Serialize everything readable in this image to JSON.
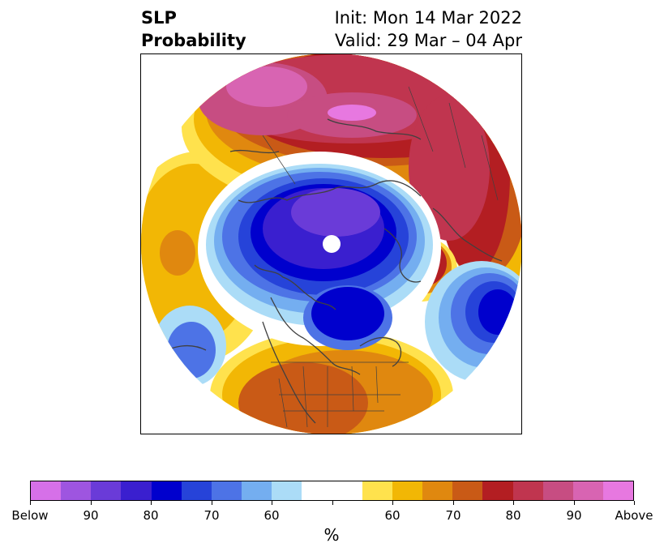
{
  "header": {
    "title_line1": "SLP",
    "title_line2": "Probability",
    "init": "Init: Mon 14 Mar 2022",
    "valid": "Valid: 29 Mar – 04 Apr"
  },
  "map": {
    "projection": "north-polar",
    "features": [
      "probability-shading",
      "coastlines",
      "country-borders",
      "us-state-borders"
    ]
  },
  "colorbar": {
    "unit_label": "%",
    "colors": [
      "#d670e8",
      "#9e55e0",
      "#6a3bd8",
      "#3a1fcf",
      "#0000cd",
      "#2643d9",
      "#4d73e6",
      "#74aef0",
      "#abdcf7",
      "#ffffff",
      "#ffffff",
      "#ffe24d",
      "#f2b705",
      "#e0880f",
      "#c95a16",
      "#b31e22",
      "#c0354f",
      "#c74d82",
      "#d864b2",
      "#e778e0"
    ],
    "tick_labels": [
      "Below",
      "90",
      "80",
      "70",
      "60",
      "",
      "60",
      "70",
      "80",
      "90",
      "Above"
    ]
  }
}
